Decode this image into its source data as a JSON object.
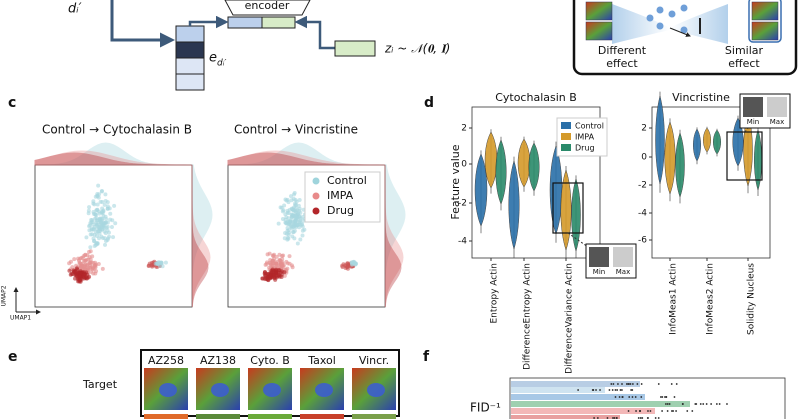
{
  "panel_labels": [
    "c",
    "d",
    "e",
    "f"
  ],
  "model": {
    "input": "dᵢ′",
    "encoder": "encoder",
    "embedding": "e",
    "embedding_sub": "dᵢ′",
    "noise": "zᵢ ~ 𝒩(𝟎, 𝐈)"
  },
  "inset": {
    "left": [
      "Different",
      "effect"
    ],
    "right": [
      "Similar",
      "effect"
    ]
  },
  "panel_c": {
    "titles": [
      "Control → Cytochalasin B",
      "Control → Vincristine"
    ],
    "legend": [
      "Control",
      "IMPA",
      "Drug"
    ],
    "axes": [
      "UMAP2",
      "UMAP1"
    ]
  },
  "panel_d": {
    "y_label": "Feature value",
    "legend": [
      "Control",
      "IMPA",
      "Drug"
    ],
    "plots": [
      {
        "title": "Cytochalasin B",
        "yticks": [
          2,
          0,
          -2,
          -4
        ],
        "features": [
          "Entropy Actin",
          "DifferenceEntropy Actin",
          "DifferenceVariance Actin"
        ]
      },
      {
        "title": "Vincristine",
        "yticks": [
          2,
          0,
          -2,
          -4,
          -6
        ],
        "features": [
          "InfoMeas1 Actin",
          "InfoMeas2 Actin",
          "Solidity Nucleus"
        ]
      }
    ],
    "scale": [
      "Min",
      "Max"
    ]
  },
  "panel_e": {
    "row_label": "Target",
    "columns": [
      "AZ258",
      "AZ138",
      "Cyto. B",
      "Taxol",
      "Vincr."
    ]
  },
  "panel_f": {
    "metric": "FID⁻¹"
  }
}
